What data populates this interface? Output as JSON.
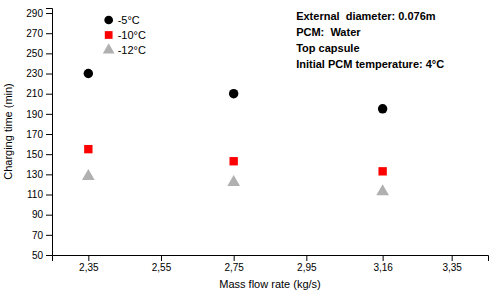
{
  "chart_data": {
    "type": "scatter",
    "xlabel": "Mass flow rate (kg/s)",
    "ylabel": "Charging time (min)",
    "series": [
      {
        "name": "-5°C",
        "color": "black",
        "marker": "circle",
        "x": [
          2.35,
          2.75,
          3.16
        ],
        "values": [
          230,
          210,
          195
        ]
      },
      {
        "name": "-10°C",
        "color": "red",
        "marker": "square",
        "x": [
          2.35,
          2.75,
          3.16
        ],
        "values": [
          155,
          143,
          133
        ]
      },
      {
        "name": "-12°C",
        "color": "#b0b0b0",
        "marker": "triangle",
        "x": [
          2.35,
          2.75,
          3.16
        ],
        "values": [
          128,
          122,
          113
        ]
      }
    ],
    "xlim": [
      2.25,
      3.45
    ],
    "ylim": [
      50,
      295
    ],
    "xticks": [
      {
        "value": 2.35,
        "label": "2,35"
      },
      {
        "value": 2.55,
        "label": "2,55"
      },
      {
        "value": 2.75,
        "label": "2,75"
      },
      {
        "value": 2.95,
        "label": "2,95"
      },
      {
        "value": 3.16,
        "label": "3,16"
      },
      {
        "value": 3.35,
        "label": "3,35"
      }
    ],
    "yticks": [
      50,
      70,
      90,
      110,
      130,
      150,
      170,
      190,
      210,
      230,
      250,
      270,
      290
    ],
    "annotations": [
      "External  diameter: 0.076m",
      "PCM:  Water",
      "Top capsule",
      "Initial PCM temperature: 4°C"
    ],
    "legend": "upper left",
    "grid": false
  }
}
